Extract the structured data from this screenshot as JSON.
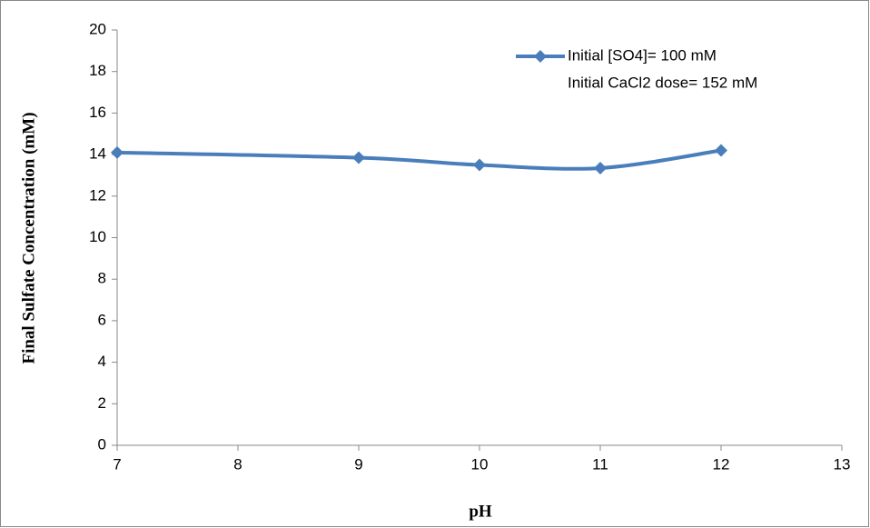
{
  "chart_data": {
    "type": "line",
    "x_label": "pH",
    "y_label": "Final Sulfate Concentration (mM)",
    "x": [
      7,
      9,
      10,
      11,
      12
    ],
    "series": [
      {
        "name": "Initial [SO4]= 100 mM",
        "color": "#4a7ebb",
        "values": [
          14.1,
          13.85,
          13.5,
          13.35,
          14.2
        ]
      }
    ],
    "annotation": "Initial CaCl2 dose= 152 mM",
    "xlim": [
      7,
      13
    ],
    "xticks": [
      7,
      8,
      9,
      10,
      11,
      12,
      13
    ],
    "ylim": [
      0,
      20
    ],
    "yticks": [
      0,
      2,
      4,
      6,
      8,
      10,
      12,
      14,
      16,
      18,
      20
    ],
    "grid": false,
    "legend": "top-right"
  }
}
